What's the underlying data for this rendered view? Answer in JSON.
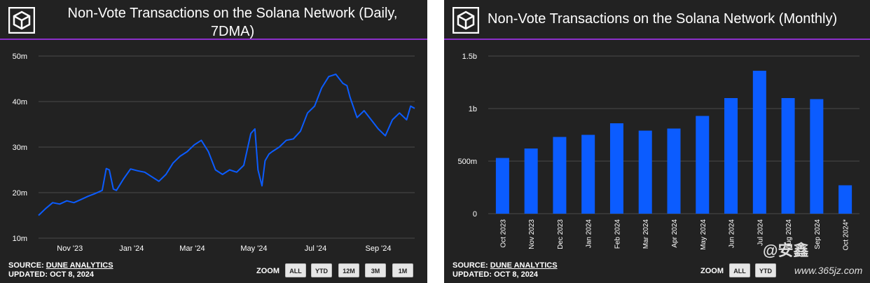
{
  "left_panel": {
    "title_line1": "Non-Vote Transactions on the Solana Network (Daily,",
    "title_line2": "7DMA)",
    "source_prefix": "SOURCE: ",
    "source_link": "DUNE ANALYTICS",
    "updated": "UPDATED: OCT 8, 2024",
    "zoom_label": "ZOOM",
    "zoom_buttons": [
      "ALL",
      "YTD",
      "12M",
      "3M",
      "1M"
    ]
  },
  "right_panel": {
    "title": "Non-Vote Transactions on the Solana Network (Monthly)",
    "source_prefix": "SOURCE: ",
    "source_link": "DUNE ANALYTICS",
    "updated": "UPDATED: OCT 8, 2024",
    "zoom_label": "ZOOM",
    "zoom_buttons": [
      "ALL",
      "YTD"
    ]
  },
  "watermark": {
    "text": "@安鑫",
    "url": "www.365jz.com"
  },
  "colors": {
    "panel_bg": "#222222",
    "series": "#0b5cff",
    "rule": "#8b2fc9",
    "text": "#ffffff"
  },
  "chart_data": [
    {
      "type": "line",
      "title": "Non-Vote Transactions on the Solana Network (Daily, 7DMA)",
      "x_tick_labels": [
        "Nov '23",
        "Jan '24",
        "Mar '24",
        "May '24",
        "Jul '24",
        "Sep '24"
      ],
      "y_tick_labels": [
        "10m",
        "20m",
        "30m",
        "40m",
        "50m"
      ],
      "y_tick_values": [
        10,
        20,
        30,
        40,
        50
      ],
      "ylim": [
        10,
        50
      ],
      "xlim": [
        "2023-10-01",
        "2024-10-07"
      ],
      "y_unit": "m",
      "grid": true,
      "series": [
        {
          "x": [
            "2023-10-01",
            "2023-10-08",
            "2023-10-15",
            "2023-10-22",
            "2023-10-29",
            "2023-11-05",
            "2023-11-12",
            "2023-11-19",
            "2023-11-26",
            "2023-12-03",
            "2023-12-07",
            "2023-12-10",
            "2023-12-14",
            "2023-12-17",
            "2023-12-24",
            "2023-12-31",
            "2024-01-07",
            "2024-01-14",
            "2024-01-21",
            "2024-01-28",
            "2024-02-04",
            "2024-02-11",
            "2024-02-18",
            "2024-02-25",
            "2024-03-03",
            "2024-03-10",
            "2024-03-17",
            "2024-03-24",
            "2024-03-31",
            "2024-04-07",
            "2024-04-14",
            "2024-04-21",
            "2024-04-28",
            "2024-05-02",
            "2024-05-05",
            "2024-05-09",
            "2024-05-12",
            "2024-05-16",
            "2024-05-19",
            "2024-05-26",
            "2024-06-02",
            "2024-06-09",
            "2024-06-16",
            "2024-06-23",
            "2024-06-30",
            "2024-07-07",
            "2024-07-14",
            "2024-07-21",
            "2024-07-28",
            "2024-08-01",
            "2024-08-04",
            "2024-08-11",
            "2024-08-18",
            "2024-08-25",
            "2024-09-01",
            "2024-09-08",
            "2024-09-15",
            "2024-09-22",
            "2024-09-29",
            "2024-10-03",
            "2024-10-07"
          ],
          "y": [
            15,
            16.5,
            17.8,
            17.5,
            18.2,
            17.8,
            18.5,
            19.2,
            19.8,
            20.5,
            25.3,
            25,
            20.8,
            20.5,
            23,
            25.2,
            24.8,
            24.5,
            23.5,
            22.5,
            24,
            26.5,
            28,
            29,
            30.5,
            31.5,
            29,
            25,
            24,
            25,
            24.5,
            26,
            33,
            34,
            25,
            21.5,
            27,
            28.5,
            29,
            30,
            31.5,
            31.8,
            33.5,
            37.5,
            39,
            43,
            45.5,
            46,
            44,
            43.5,
            41,
            36.5,
            38,
            36,
            34,
            32.5,
            36,
            37.5,
            36,
            39,
            38.5
          ]
        }
      ]
    },
    {
      "type": "bar",
      "title": "Non-Vote Transactions on the Solana Network (Monthly)",
      "categories": [
        "Oct 2023",
        "Nov 2023",
        "Dec 2023",
        "Jan 2024",
        "Feb 2024",
        "Mar 2024",
        "Apr 2024",
        "May 2024",
        "Jun 2024",
        "Jul 2024",
        "Aug 2024",
        "Sep 2024",
        "Oct 2024*"
      ],
      "values": [
        0.53,
        0.62,
        0.73,
        0.75,
        0.86,
        0.79,
        0.81,
        0.93,
        1.1,
        1.36,
        1.1,
        1.09,
        0.27
      ],
      "y_tick_labels": [
        "0",
        "500m",
        "1b",
        "1.5b"
      ],
      "y_tick_values": [
        0,
        0.5,
        1,
        1.5
      ],
      "ylim": [
        0,
        1.5
      ],
      "y_unit": "b",
      "grid": true
    }
  ]
}
